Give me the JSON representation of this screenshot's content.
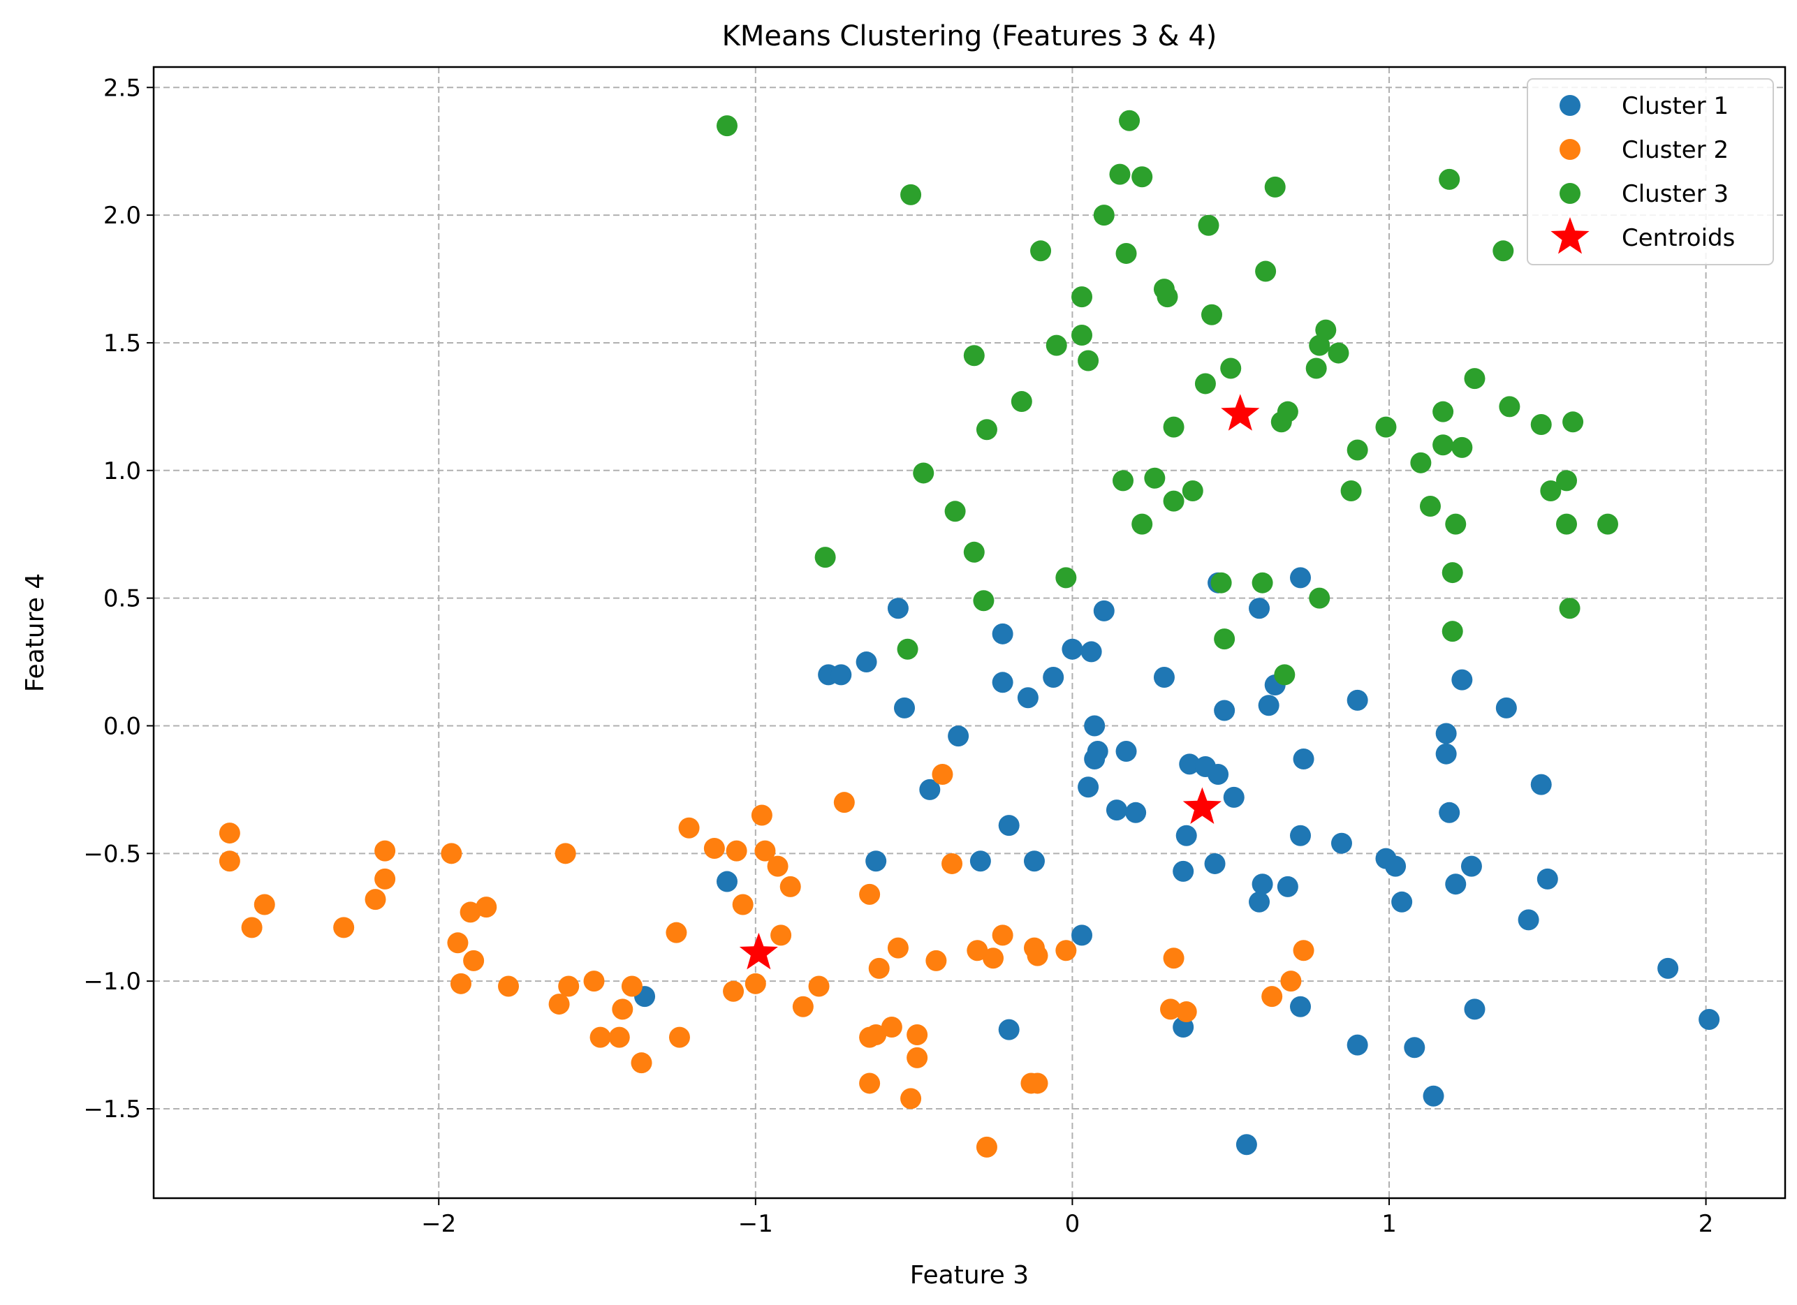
{
  "chart_data": {
    "type": "scatter",
    "title": "KMeans Clustering (Features 3 & 4)",
    "xlabel": "Feature 3",
    "ylabel": "Feature 4",
    "xlim": [
      -2.9,
      2.25
    ],
    "ylim": [
      -1.85,
      2.58
    ],
    "xticks": [
      {
        "value": -2,
        "label": "−2"
      },
      {
        "value": -1,
        "label": "−1"
      },
      {
        "value": 0,
        "label": "0"
      },
      {
        "value": 1,
        "label": "1"
      },
      {
        "value": 2,
        "label": "2"
      }
    ],
    "yticks": [
      {
        "value": -1.5,
        "label": "−1.5"
      },
      {
        "value": -1.0,
        "label": "−1.0"
      },
      {
        "value": -0.5,
        "label": "−0.5"
      },
      {
        "value": 0.0,
        "label": "0.0"
      },
      {
        "value": 0.5,
        "label": "0.5"
      },
      {
        "value": 1.0,
        "label": "1.0"
      },
      {
        "value": 1.5,
        "label": "1.5"
      },
      {
        "value": 2.0,
        "label": "2.0"
      },
      {
        "value": 2.5,
        "label": "2.5"
      }
    ],
    "grid": true,
    "legend_position": "top-right",
    "series": [
      {
        "name": "Cluster 1",
        "color": "#1f77b4",
        "marker": "circle",
        "points": [
          [
            -1.09,
            -0.61
          ],
          [
            -1.35,
            -1.06
          ],
          [
            -0.77,
            0.2
          ],
          [
            -0.73,
            0.2
          ],
          [
            -0.65,
            0.25
          ],
          [
            -0.62,
            -0.53
          ],
          [
            -0.55,
            0.46
          ],
          [
            -0.53,
            0.07
          ],
          [
            -0.45,
            -0.25
          ],
          [
            -0.36,
            -0.04
          ],
          [
            -0.29,
            -0.53
          ],
          [
            -0.22,
            0.36
          ],
          [
            -0.22,
            0.17
          ],
          [
            -0.2,
            -0.39
          ],
          [
            -0.2,
            -1.19
          ],
          [
            -0.14,
            0.11
          ],
          [
            -0.12,
            -0.53
          ],
          [
            -0.06,
            0.19
          ],
          [
            0.0,
            0.3
          ],
          [
            0.03,
            -0.82
          ],
          [
            0.05,
            -0.24
          ],
          [
            0.06,
            0.29
          ],
          [
            0.07,
            0.0
          ],
          [
            0.07,
            -0.13
          ],
          [
            0.08,
            -0.1
          ],
          [
            0.1,
            0.45
          ],
          [
            0.14,
            -0.33
          ],
          [
            0.17,
            -0.1
          ],
          [
            0.2,
            -0.34
          ],
          [
            0.29,
            0.19
          ],
          [
            0.35,
            -0.57
          ],
          [
            0.35,
            -1.18
          ],
          [
            0.36,
            -0.43
          ],
          [
            0.37,
            -0.15
          ],
          [
            0.42,
            -0.16
          ],
          [
            0.45,
            -0.54
          ],
          [
            0.46,
            0.56
          ],
          [
            0.46,
            -0.19
          ],
          [
            0.48,
            0.06
          ],
          [
            0.51,
            -0.28
          ],
          [
            0.55,
            -1.64
          ],
          [
            0.59,
            0.46
          ],
          [
            0.59,
            -0.69
          ],
          [
            0.6,
            -0.62
          ],
          [
            0.62,
            0.08
          ],
          [
            0.64,
            0.16
          ],
          [
            0.68,
            -0.63
          ],
          [
            0.72,
            0.58
          ],
          [
            0.72,
            -0.43
          ],
          [
            0.72,
            -1.1
          ],
          [
            0.73,
            -0.13
          ],
          [
            0.85,
            -0.46
          ],
          [
            0.9,
            0.1
          ],
          [
            0.9,
            -1.25
          ],
          [
            0.99,
            -0.52
          ],
          [
            1.02,
            -0.55
          ],
          [
            1.04,
            -0.69
          ],
          [
            1.08,
            -1.26
          ],
          [
            1.14,
            -1.45
          ],
          [
            1.18,
            -0.03
          ],
          [
            1.18,
            -0.11
          ],
          [
            1.19,
            -0.34
          ],
          [
            1.21,
            -0.62
          ],
          [
            1.23,
            0.18
          ],
          [
            1.26,
            -0.55
          ],
          [
            1.27,
            -1.11
          ],
          [
            1.37,
            0.07
          ],
          [
            1.44,
            -0.76
          ],
          [
            1.48,
            -0.23
          ],
          [
            1.5,
            -0.6
          ],
          [
            1.88,
            -0.95
          ],
          [
            2.01,
            -1.15
          ]
        ]
      },
      {
        "name": "Cluster 2",
        "color": "#ff7f0e",
        "marker": "circle",
        "points": [
          [
            -2.66,
            -0.42
          ],
          [
            -2.66,
            -0.53
          ],
          [
            -2.59,
            -0.79
          ],
          [
            -2.55,
            -0.7
          ],
          [
            -2.3,
            -0.79
          ],
          [
            -2.2,
            -0.68
          ],
          [
            -2.17,
            -0.49
          ],
          [
            -2.17,
            -0.6
          ],
          [
            -1.96,
            -0.5
          ],
          [
            -1.94,
            -0.85
          ],
          [
            -1.93,
            -1.01
          ],
          [
            -1.9,
            -0.73
          ],
          [
            -1.89,
            -0.92
          ],
          [
            -1.85,
            -0.71
          ],
          [
            -1.78,
            -1.02
          ],
          [
            -1.6,
            -0.5
          ],
          [
            -1.62,
            -1.09
          ],
          [
            -1.59,
            -1.02
          ],
          [
            -1.51,
            -1.0
          ],
          [
            -1.49,
            -1.22
          ],
          [
            -1.43,
            -1.22
          ],
          [
            -1.42,
            -1.11
          ],
          [
            -1.39,
            -1.02
          ],
          [
            -1.36,
            -1.32
          ],
          [
            -1.25,
            -0.81
          ],
          [
            -1.24,
            -1.22
          ],
          [
            -1.21,
            -0.4
          ],
          [
            -1.13,
            -0.48
          ],
          [
            -1.07,
            -1.04
          ],
          [
            -1.06,
            -0.49
          ],
          [
            -1.04,
            -0.7
          ],
          [
            -1.0,
            -1.01
          ],
          [
            -0.98,
            -0.35
          ],
          [
            -0.97,
            -0.49
          ],
          [
            -0.93,
            -0.55
          ],
          [
            -0.92,
            -0.82
          ],
          [
            -0.89,
            -0.63
          ],
          [
            -0.85,
            -1.1
          ],
          [
            -0.8,
            -1.02
          ],
          [
            -0.72,
            -0.3
          ],
          [
            -0.64,
            -0.66
          ],
          [
            -0.64,
            -1.22
          ],
          [
            -0.64,
            -1.4
          ],
          [
            -0.62,
            -1.21
          ],
          [
            -0.61,
            -0.95
          ],
          [
            -0.57,
            -1.18
          ],
          [
            -0.55,
            -0.87
          ],
          [
            -0.51,
            -1.46
          ],
          [
            -0.49,
            -1.21
          ],
          [
            -0.49,
            -1.3
          ],
          [
            -0.43,
            -0.92
          ],
          [
            -0.41,
            -0.19
          ],
          [
            -0.38,
            -0.54
          ],
          [
            -0.3,
            -0.88
          ],
          [
            -0.27,
            -1.65
          ],
          [
            -0.25,
            -0.91
          ],
          [
            -0.22,
            -0.82
          ],
          [
            -0.13,
            -1.4
          ],
          [
            -0.12,
            -0.87
          ],
          [
            -0.11,
            -0.9
          ],
          [
            -0.11,
            -1.4
          ],
          [
            -0.02,
            -0.88
          ],
          [
            0.31,
            -1.11
          ],
          [
            0.32,
            -0.91
          ],
          [
            0.36,
            -1.12
          ],
          [
            0.63,
            -1.06
          ],
          [
            0.69,
            -1.0
          ],
          [
            0.73,
            -0.88
          ]
        ]
      },
      {
        "name": "Cluster 3",
        "color": "#2ca02c",
        "marker": "circle",
        "points": [
          [
            -1.09,
            2.35
          ],
          [
            -0.78,
            0.66
          ],
          [
            -0.52,
            0.3
          ],
          [
            -0.51,
            2.08
          ],
          [
            -0.47,
            0.99
          ],
          [
            -0.37,
            0.84
          ],
          [
            -0.31,
            1.45
          ],
          [
            -0.31,
            0.68
          ],
          [
            -0.28,
            0.49
          ],
          [
            -0.27,
            1.16
          ],
          [
            -0.16,
            1.27
          ],
          [
            -0.1,
            1.86
          ],
          [
            -0.05,
            1.49
          ],
          [
            -0.02,
            0.58
          ],
          [
            0.03,
            1.53
          ],
          [
            0.03,
            1.68
          ],
          [
            0.05,
            1.43
          ],
          [
            0.1,
            2.0
          ],
          [
            0.15,
            2.16
          ],
          [
            0.16,
            0.96
          ],
          [
            0.17,
            1.85
          ],
          [
            0.18,
            2.37
          ],
          [
            0.22,
            2.15
          ],
          [
            0.22,
            0.79
          ],
          [
            0.26,
            0.97
          ],
          [
            0.29,
            1.71
          ],
          [
            0.3,
            1.68
          ],
          [
            0.32,
            1.17
          ],
          [
            0.32,
            0.88
          ],
          [
            0.38,
            0.92
          ],
          [
            0.42,
            1.34
          ],
          [
            0.43,
            1.96
          ],
          [
            0.44,
            1.61
          ],
          [
            0.47,
            0.56
          ],
          [
            0.48,
            0.34
          ],
          [
            0.5,
            1.4
          ],
          [
            0.6,
            0.56
          ],
          [
            0.61,
            1.78
          ],
          [
            0.64,
            2.11
          ],
          [
            0.66,
            1.19
          ],
          [
            0.67,
            0.2
          ],
          [
            0.68,
            1.23
          ],
          [
            0.77,
            1.4
          ],
          [
            0.78,
            0.5
          ],
          [
            0.78,
            1.49
          ],
          [
            0.8,
            1.55
          ],
          [
            0.84,
            1.46
          ],
          [
            0.88,
            0.92
          ],
          [
            0.9,
            1.08
          ],
          [
            0.99,
            1.17
          ],
          [
            1.1,
            1.03
          ],
          [
            1.13,
            0.86
          ],
          [
            1.17,
            1.23
          ],
          [
            1.17,
            1.1
          ],
          [
            1.19,
            2.14
          ],
          [
            1.2,
            0.6
          ],
          [
            1.2,
            0.37
          ],
          [
            1.21,
            0.79
          ],
          [
            1.23,
            1.09
          ],
          [
            1.27,
            1.36
          ],
          [
            1.36,
            1.86
          ],
          [
            1.38,
            1.25
          ],
          [
            1.48,
            1.18
          ],
          [
            1.51,
            0.92
          ],
          [
            1.56,
            0.96
          ],
          [
            1.56,
            0.79
          ],
          [
            1.57,
            0.46
          ],
          [
            1.58,
            1.19
          ],
          [
            1.69,
            0.79
          ]
        ]
      },
      {
        "name": "Centroids",
        "color": "#ff0000",
        "marker": "star",
        "points": [
          [
            0.53,
            1.22
          ],
          [
            0.41,
            -0.32
          ],
          [
            -0.99,
            -0.89
          ]
        ]
      }
    ]
  }
}
